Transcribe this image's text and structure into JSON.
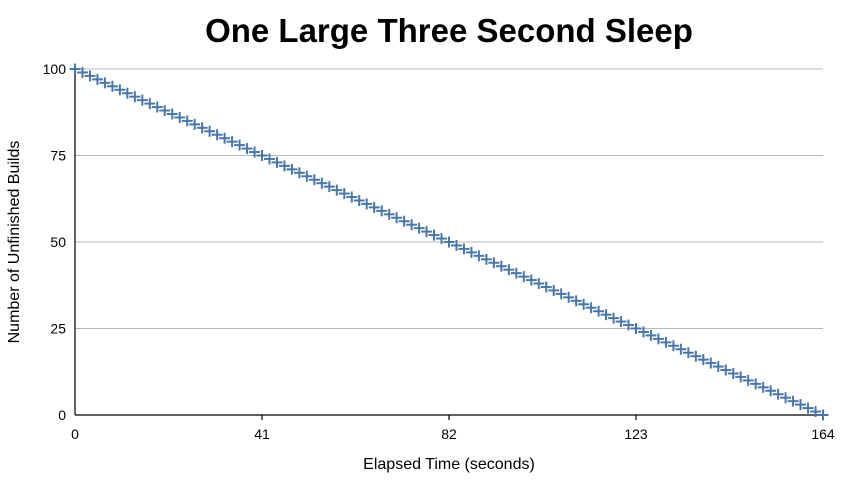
{
  "chart_data": {
    "type": "scatter",
    "title": "One Large Three Second Sleep",
    "xlabel": "Elapsed Time (seconds)",
    "ylabel": "Number of Unfinished Builds",
    "xlim": [
      0,
      164
    ],
    "ylim": [
      0,
      100
    ],
    "x_ticks": [
      "0",
      "41",
      "82",
      "123",
      "164"
    ],
    "y_ticks": [
      "0",
      "25",
      "50",
      "75",
      "100"
    ],
    "grid": true,
    "legend": "none",
    "marker": "plus",
    "marker_color": "#4a77a8",
    "series": [
      {
        "x": [
          0,
          1.64,
          3.28,
          4.92,
          6.56,
          8.2,
          9.84,
          11.48,
          13.12,
          14.76,
          16.4,
          18.04,
          19.68,
          21.32,
          22.96,
          24.6,
          26.24,
          27.88,
          29.52,
          31.16,
          32.8,
          34.44,
          36.08,
          37.72,
          39.36,
          41,
          42.64,
          44.28,
          45.92,
          47.56,
          49.2,
          50.84,
          52.48,
          54.12,
          55.76,
          57.4,
          59.04,
          60.68,
          62.32,
          63.96,
          65.6,
          67.24,
          68.88,
          70.52,
          72.16,
          73.8,
          75.44,
          77.08,
          78.72,
          80.36,
          82,
          83.64,
          85.28,
          86.92,
          88.56,
          90.2,
          91.84,
          93.48,
          95.12,
          96.76,
          98.4,
          100.04,
          101.68,
          103.32,
          104.96,
          106.6,
          108.24,
          109.88,
          111.52,
          113.16,
          114.8,
          116.44,
          118.08,
          119.72,
          121.36,
          123,
          124.64,
          126.28,
          127.92,
          129.56,
          131.2,
          132.84,
          134.48,
          136.12,
          137.76,
          139.4,
          141.04,
          142.68,
          144.32,
          145.96,
          147.6,
          149.24,
          150.88,
          152.52,
          154.16,
          155.8,
          157.44,
          159.08,
          160.72,
          162.36,
          164
        ],
        "y": [
          100,
          99,
          98,
          97,
          96,
          95,
          94,
          93,
          92,
          91,
          90,
          89,
          88,
          87,
          86,
          85,
          84,
          83,
          82,
          81,
          80,
          79,
          78,
          77,
          76,
          75,
          74,
          73,
          72,
          71,
          70,
          69,
          68,
          67,
          66,
          65,
          64,
          63,
          62,
          61,
          60,
          59,
          58,
          57,
          56,
          55,
          54,
          53,
          52,
          51,
          50,
          49,
          48,
          47,
          46,
          45,
          44,
          43,
          42,
          41,
          40,
          39,
          38,
          37,
          36,
          35,
          34,
          33,
          32,
          31,
          30,
          29,
          28,
          27,
          26,
          25,
          24,
          23,
          22,
          21,
          20,
          19,
          18,
          17,
          16,
          15,
          14,
          13,
          12,
          11,
          10,
          9,
          8,
          7,
          6,
          5,
          4,
          3,
          2,
          1,
          0
        ]
      }
    ]
  }
}
